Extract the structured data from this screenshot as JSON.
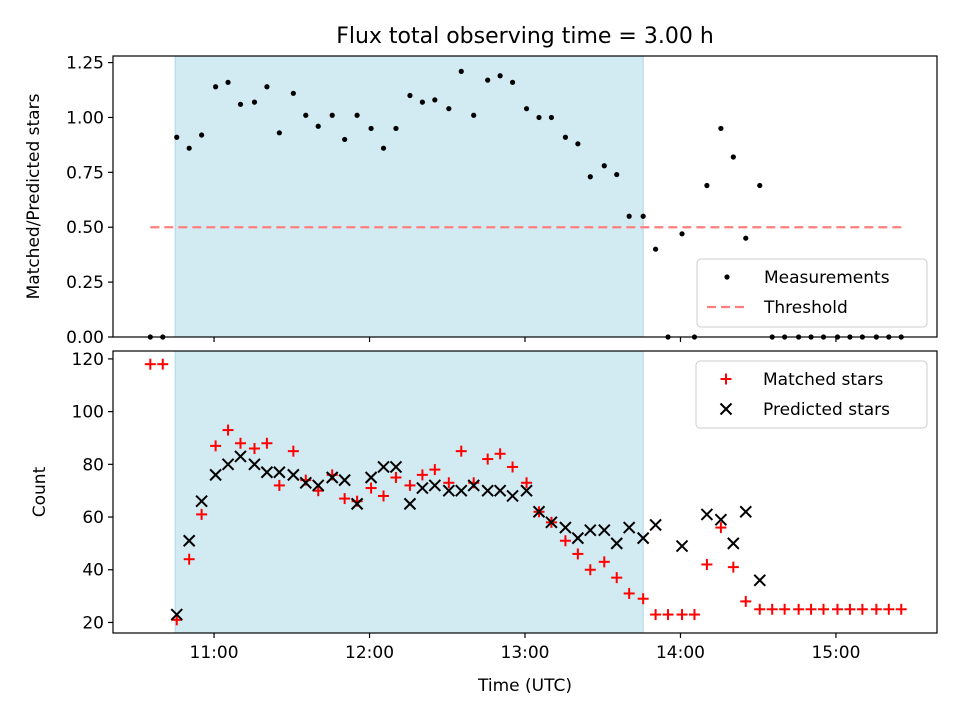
{
  "figure": {
    "title": "Flux total observing time = 3.00 h",
    "xlabel": "Time (UTC)",
    "xticks": [
      {
        "value": 11.0,
        "label": "11:00"
      },
      {
        "value": 12.0,
        "label": "12:00"
      },
      {
        "value": 13.0,
        "label": "13:00"
      },
      {
        "value": 14.0,
        "label": "14:00"
      },
      {
        "value": 15.0,
        "label": "15:00"
      }
    ],
    "xlim": [
      10.35,
      15.65
    ],
    "shaded_interval": [
      10.75,
      13.76
    ],
    "shade_color": "#add8e6",
    "threshold_color": "#ff7f7f"
  },
  "chart_data": [
    {
      "type": "scatter",
      "ylabel": "Matched/Predicted stars",
      "ylim": [
        0,
        1.28
      ],
      "yticks": [
        {
          "value": 0.0,
          "label": "0.00"
        },
        {
          "value": 0.25,
          "label": "0.25"
        },
        {
          "value": 0.5,
          "label": "0.50"
        },
        {
          "value": 0.75,
          "label": "0.75"
        },
        {
          "value": 1.0,
          "label": "1.00"
        },
        {
          "value": 1.25,
          "label": "1.25"
        }
      ],
      "legend_position": "bottom-right",
      "series": [
        {
          "name": "Measurements",
          "marker": "dot",
          "color": "#000000",
          "points": [
            [
              10.59,
              0.0
            ],
            [
              10.67,
              0.0
            ],
            [
              10.76,
              0.91
            ],
            [
              10.84,
              0.86
            ],
            [
              10.92,
              0.92
            ],
            [
              11.01,
              1.14
            ],
            [
              11.09,
              1.16
            ],
            [
              11.17,
              1.06
            ],
            [
              11.26,
              1.07
            ],
            [
              11.34,
              1.14
            ],
            [
              11.42,
              0.93
            ],
            [
              11.51,
              1.11
            ],
            [
              11.59,
              1.01
            ],
            [
              11.67,
              0.96
            ],
            [
              11.76,
              1.01
            ],
            [
              11.84,
              0.9
            ],
            [
              11.92,
              1.01
            ],
            [
              12.01,
              0.95
            ],
            [
              12.09,
              0.86
            ],
            [
              12.17,
              0.95
            ],
            [
              12.26,
              1.1
            ],
            [
              12.34,
              1.07
            ],
            [
              12.42,
              1.08
            ],
            [
              12.51,
              1.04
            ],
            [
              12.59,
              1.21
            ],
            [
              12.67,
              1.01
            ],
            [
              12.76,
              1.17
            ],
            [
              12.84,
              1.19
            ],
            [
              12.92,
              1.16
            ],
            [
              13.01,
              1.04
            ],
            [
              13.09,
              1.0
            ],
            [
              13.17,
              1.0
            ],
            [
              13.26,
              0.91
            ],
            [
              13.34,
              0.88
            ],
            [
              13.42,
              0.73
            ],
            [
              13.51,
              0.78
            ],
            [
              13.59,
              0.74
            ],
            [
              13.67,
              0.55
            ],
            [
              13.76,
              0.55
            ],
            [
              13.84,
              0.4
            ],
            [
              13.92,
              0.0
            ],
            [
              14.01,
              0.47
            ],
            [
              14.09,
              0.0
            ],
            [
              14.17,
              0.69
            ],
            [
              14.26,
              0.95
            ],
            [
              14.34,
              0.82
            ],
            [
              14.42,
              0.45
            ],
            [
              14.51,
              0.69
            ],
            [
              14.59,
              0.0
            ],
            [
              14.67,
              0.0
            ],
            [
              14.76,
              0.0
            ],
            [
              14.84,
              0.0
            ],
            [
              14.92,
              0.0
            ],
            [
              15.01,
              0.0
            ],
            [
              15.09,
              0.0
            ],
            [
              15.17,
              0.0
            ],
            [
              15.26,
              0.0
            ],
            [
              15.34,
              0.0
            ],
            [
              15.42,
              0.0
            ]
          ]
        },
        {
          "name": "Threshold",
          "marker": "dashed-line",
          "color": "#ff7f7f",
          "points": [
            [
              10.59,
              0.5
            ],
            [
              15.42,
              0.5
            ]
          ]
        }
      ]
    },
    {
      "type": "scatter",
      "ylabel": "Count",
      "ylim": [
        16,
        123
      ],
      "yticks": [
        {
          "value": 20,
          "label": "20"
        },
        {
          "value": 40,
          "label": "40"
        },
        {
          "value": 60,
          "label": "60"
        },
        {
          "value": 80,
          "label": "80"
        },
        {
          "value": 100,
          "label": "100"
        },
        {
          "value": 120,
          "label": "120"
        }
      ],
      "legend_position": "top-right",
      "series": [
        {
          "name": "Matched stars",
          "marker": "plus",
          "color": "#ff0000",
          "points": [
            [
              10.59,
              118
            ],
            [
              10.67,
              118
            ],
            [
              10.76,
              21
            ],
            [
              10.84,
              44
            ],
            [
              10.92,
              61
            ],
            [
              11.01,
              87
            ],
            [
              11.09,
              93
            ],
            [
              11.17,
              88
            ],
            [
              11.26,
              86
            ],
            [
              11.34,
              88
            ],
            [
              11.42,
              72
            ],
            [
              11.51,
              85
            ],
            [
              11.59,
              74
            ],
            [
              11.67,
              70
            ],
            [
              11.76,
              76
            ],
            [
              11.84,
              67
            ],
            [
              11.92,
              66
            ],
            [
              12.01,
              71
            ],
            [
              12.09,
              68
            ],
            [
              12.17,
              75
            ],
            [
              12.26,
              72
            ],
            [
              12.34,
              76
            ],
            [
              12.42,
              78
            ],
            [
              12.51,
              73
            ],
            [
              12.59,
              85
            ],
            [
              12.67,
              73
            ],
            [
              12.76,
              82
            ],
            [
              12.84,
              84
            ],
            [
              12.92,
              79
            ],
            [
              13.01,
              73
            ],
            [
              13.09,
              62
            ],
            [
              13.17,
              58
            ],
            [
              13.26,
              51
            ],
            [
              13.34,
              46
            ],
            [
              13.42,
              40
            ],
            [
              13.51,
              43
            ],
            [
              13.59,
              37
            ],
            [
              13.67,
              31
            ],
            [
              13.76,
              29
            ],
            [
              13.84,
              23
            ],
            [
              13.92,
              23
            ],
            [
              14.01,
              23
            ],
            [
              14.09,
              23
            ],
            [
              14.17,
              42
            ],
            [
              14.26,
              56
            ],
            [
              14.34,
              41
            ],
            [
              14.42,
              28
            ],
            [
              14.51,
              25
            ],
            [
              14.59,
              25
            ],
            [
              14.67,
              25
            ],
            [
              14.76,
              25
            ],
            [
              14.84,
              25
            ],
            [
              14.92,
              25
            ],
            [
              15.01,
              25
            ],
            [
              15.09,
              25
            ],
            [
              15.17,
              25
            ],
            [
              15.26,
              25
            ],
            [
              15.34,
              25
            ],
            [
              15.42,
              25
            ]
          ]
        },
        {
          "name": "Predicted stars",
          "marker": "x",
          "color": "#000000",
          "points": [
            [
              10.76,
              23
            ],
            [
              10.84,
              51
            ],
            [
              10.92,
              66
            ],
            [
              11.01,
              76
            ],
            [
              11.09,
              80
            ],
            [
              11.17,
              83
            ],
            [
              11.26,
              80
            ],
            [
              11.34,
              77
            ],
            [
              11.42,
              77
            ],
            [
              11.51,
              76
            ],
            [
              11.59,
              73
            ],
            [
              11.67,
              72
            ],
            [
              11.76,
              75
            ],
            [
              11.84,
              74
            ],
            [
              11.92,
              65
            ],
            [
              12.01,
              75
            ],
            [
              12.09,
              79
            ],
            [
              12.17,
              79
            ],
            [
              12.26,
              65
            ],
            [
              12.34,
              71
            ],
            [
              12.42,
              72
            ],
            [
              12.51,
              70
            ],
            [
              12.59,
              70
            ],
            [
              12.67,
              72
            ],
            [
              12.76,
              70
            ],
            [
              12.84,
              70
            ],
            [
              12.92,
              68
            ],
            [
              13.01,
              70
            ],
            [
              13.09,
              62
            ],
            [
              13.17,
              58
            ],
            [
              13.26,
              56
            ],
            [
              13.34,
              52
            ],
            [
              13.42,
              55
            ],
            [
              13.51,
              55
            ],
            [
              13.59,
              50
            ],
            [
              13.67,
              56
            ],
            [
              13.76,
              52
            ],
            [
              13.84,
              57
            ],
            [
              14.01,
              49
            ],
            [
              14.17,
              61
            ],
            [
              14.26,
              59
            ],
            [
              14.34,
              50
            ],
            [
              14.42,
              62
            ],
            [
              14.51,
              36
            ]
          ]
        }
      ]
    }
  ]
}
